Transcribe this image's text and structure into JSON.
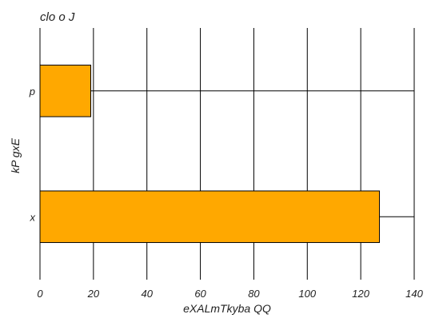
{
  "chart_data": {
    "type": "bar",
    "orientation": "horizontal",
    "title": "clo o J",
    "xlabel": "eXALmTkyba QQ",
    "ylabel": "kP gxE",
    "categories": [
      "p",
      "x"
    ],
    "series": [
      {
        "values": [
          19,
          127
        ],
        "error_upper": [
          140,
          140
        ]
      }
    ],
    "xlim": [
      0,
      140
    ],
    "xticks": [
      "0",
      "20",
      "40",
      "60",
      "80",
      "100",
      "120",
      "140"
    ],
    "grid": "vertical",
    "bar_color": "#ffa800",
    "bar_edge_color": "#000000"
  }
}
